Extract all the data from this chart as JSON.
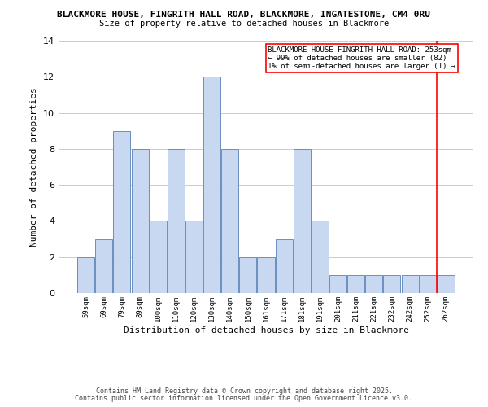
{
  "title1": "BLACKMORE HOUSE, FINGRITH HALL ROAD, BLACKMORE, INGATESTONE, CM4 0RU",
  "title2": "Size of property relative to detached houses in Blackmore",
  "xlabel": "Distribution of detached houses by size in Blackmore",
  "ylabel": "Number of detached properties",
  "bar_labels": [
    "59sqm",
    "69sqm",
    "79sqm",
    "89sqm",
    "100sqm",
    "110sqm",
    "120sqm",
    "130sqm",
    "140sqm",
    "150sqm",
    "161sqm",
    "171sqm",
    "181sqm",
    "191sqm",
    "201sqm",
    "211sqm",
    "221sqm",
    "232sqm",
    "242sqm",
    "252sqm",
    "262sqm"
  ],
  "bar_values": [
    2,
    3,
    9,
    8,
    4,
    8,
    4,
    12,
    8,
    2,
    2,
    3,
    8,
    4,
    1,
    1,
    1,
    1,
    1,
    1,
    1
  ],
  "bar_color": "#c8d8f0",
  "bar_edge_color": "#6a8fbf",
  "grid_color": "#cccccc",
  "vline_x_index": 19.5,
  "vline_color": "red",
  "annotation_text": "BLACKMORE HOUSE FINGRITH HALL ROAD: 253sqm\n← 99% of detached houses are smaller (82)\n1% of semi-detached houses are larger (1) →",
  "annotation_box_edge": "red",
  "ylim": [
    0,
    14
  ],
  "yticks": [
    0,
    2,
    4,
    6,
    8,
    10,
    12,
    14
  ],
  "footnote1": "Contains HM Land Registry data © Crown copyright and database right 2025.",
  "footnote2": "Contains public sector information licensed under the Open Government Licence v3.0."
}
